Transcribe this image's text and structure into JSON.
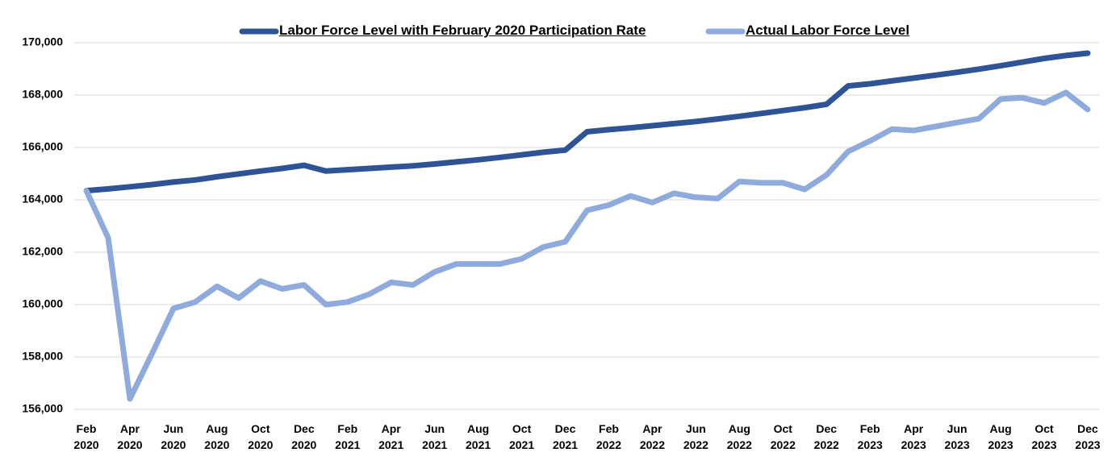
{
  "chart_data": {
    "type": "line",
    "categories": [
      "Feb 2020",
      null,
      "Apr 2020",
      null,
      "Jun 2020",
      null,
      "Aug 2020",
      null,
      "Oct 2020",
      null,
      "Dec 2020",
      null,
      "Feb 2021",
      null,
      "Apr 2021",
      null,
      "Jun 2021",
      null,
      "Aug 2021",
      null,
      "Oct 2021",
      null,
      "Dec 2021",
      null,
      "Feb 2022",
      null,
      "Apr 2022",
      null,
      "Jun 2022",
      null,
      "Aug 2022",
      null,
      "Oct 2022",
      null,
      "Dec 2022",
      null,
      "Feb 2023",
      null,
      "Apr 2023",
      null,
      "Jun 2023",
      null,
      "Aug 2023",
      null,
      "Oct 2023",
      null,
      "Dec 2023"
    ],
    "series": [
      {
        "name": "Labor Force Level with February 2020 Participation Rate",
        "color": "#2f5496",
        "values": [
          164350,
          164420,
          164500,
          164580,
          164680,
          164760,
          164880,
          164990,
          165100,
          165200,
          165320,
          165100,
          165150,
          165200,
          165250,
          165300,
          165370,
          165450,
          165530,
          165620,
          165720,
          165820,
          165900,
          166600,
          166680,
          166750,
          166830,
          166910,
          166990,
          167090,
          167190,
          167300,
          167410,
          167520,
          167650,
          168350,
          168430,
          168540,
          168650,
          168760,
          168870,
          168990,
          169120,
          169260,
          169400,
          169510,
          169600
        ]
      },
      {
        "name": "Actual Labor Force Level",
        "color": "#8faadc",
        "values": [
          164350,
          162550,
          156400,
          158100,
          159850,
          160100,
          160700,
          160250,
          160900,
          160600,
          160750,
          160000,
          160100,
          160400,
          160850,
          160750,
          161250,
          161550,
          161550,
          161550,
          161750,
          162200,
          162400,
          163600,
          163800,
          164150,
          163900,
          164250,
          164100,
          164050,
          164700,
          164650,
          164650,
          164400,
          164950,
          165850,
          166250,
          166700,
          166650,
          166800,
          166950,
          167100,
          167850,
          167900,
          167700,
          168100,
          167450
        ]
      }
    ],
    "ylim": [
      156000,
      170000
    ],
    "yticks": [
      {
        "value": 156000,
        "label": "156,000"
      },
      {
        "value": 158000,
        "label": "158,000"
      },
      {
        "value": 160000,
        "label": "160,000"
      },
      {
        "value": 162000,
        "label": "162,000"
      },
      {
        "value": 164000,
        "label": "164,000"
      },
      {
        "value": 166000,
        "label": "166,000"
      },
      {
        "value": 168000,
        "label": "168,000"
      },
      {
        "value": 170000,
        "label": "170,000"
      }
    ],
    "grid": true,
    "legend": "top"
  }
}
